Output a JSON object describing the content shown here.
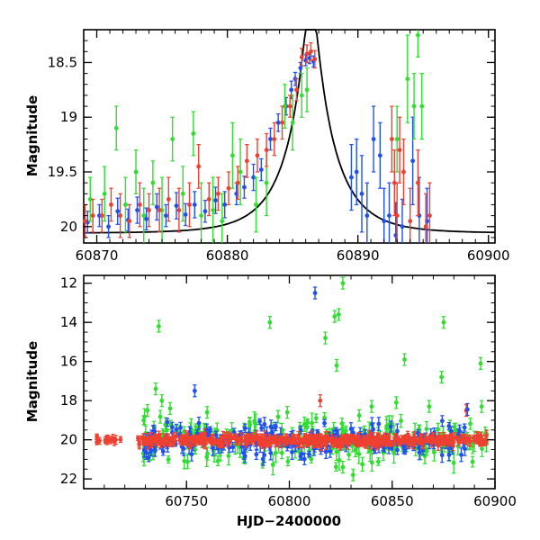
{
  "chart_data": [
    {
      "type": "scatter",
      "panel": "top",
      "xlabel": "",
      "ylabel": "Magnitude",
      "xlim": [
        60869,
        60900.5
      ],
      "ylim": [
        20.15,
        18.2
      ],
      "y_inverted": true,
      "xticks": [
        60870,
        60880,
        60890,
        60900
      ],
      "xtick_labels": [
        "60870",
        "60880",
        "60890",
        "60900"
      ],
      "yticks": [
        18.5,
        19,
        19.5,
        20
      ],
      "ytick_labels": [
        "18.5",
        "19",
        "19.5",
        "20"
      ],
      "grid": false,
      "legend": "none",
      "series": [
        {
          "color": "#2050ee",
          "x": [
            60869.3,
            60870.2,
            60870.9,
            60871.6,
            60872.4,
            60873.1,
            60873.8,
            60874.6,
            60875.3,
            60876.1,
            60876.8,
            60877.5,
            60878.3,
            60879.1,
            60879.8,
            60880.7,
            60881.3,
            60882.0,
            60882.6,
            60883.3,
            60883.9,
            60884.5,
            60884.9,
            60885.2,
            60885.6,
            60886.0,
            60886.3,
            60886.6,
            60889.5,
            60889.9,
            60890.3,
            60890.7,
            60891.2,
            60891.7,
            60892.0,
            60892.4,
            60892.9,
            60893.4,
            60894.2,
            60894.7,
            60895.3
          ],
          "y": [
            19.96,
            19.9,
            20.0,
            19.86,
            19.94,
            19.85,
            19.93,
            19.82,
            19.9,
            19.81,
            19.89,
            19.8,
            19.86,
            19.76,
            19.8,
            19.7,
            19.64,
            19.55,
            19.48,
            19.2,
            19.05,
            18.9,
            18.75,
            18.65,
            18.55,
            18.48,
            18.46,
            18.49,
            19.55,
            19.5,
            19.7,
            19.9,
            19.2,
            19.35,
            19.95,
            19.9,
            20.08,
            20.0,
            19.4,
            19.9,
            19.95
          ],
          "err": [
            0.1,
            0.1,
            0.1,
            0.12,
            0.1,
            0.12,
            0.1,
            0.12,
            0.1,
            0.12,
            0.1,
            0.12,
            0.1,
            0.12,
            0.12,
            0.1,
            0.1,
            0.12,
            0.1,
            0.1,
            0.08,
            0.08,
            0.08,
            0.06,
            0.05,
            0.05,
            0.05,
            0.05,
            0.3,
            0.3,
            0.35,
            0.3,
            0.3,
            0.3,
            0.3,
            0.3,
            0.3,
            0.25,
            0.4,
            0.35,
            0.3
          ]
        },
        {
          "color": "#30dd30",
          "x": [
            60869.5,
            60870.6,
            60871.5,
            60872.2,
            60873.0,
            60873.6,
            60874.3,
            60875.0,
            60875.8,
            60876.6,
            60877.4,
            60878.0,
            60878.9,
            60879.6,
            60880.4,
            60881.0,
            60882.2,
            60883.0,
            60884.4,
            60885.0,
            60885.7,
            60886.1,
            60893.0,
            60893.8,
            60894.3,
            60894.6,
            60894.9
          ],
          "y": [
            19.75,
            19.7,
            19.1,
            19.8,
            19.5,
            19.9,
            19.6,
            19.85,
            19.2,
            19.7,
            19.15,
            19.9,
            19.85,
            19.95,
            19.35,
            19.5,
            19.8,
            19.6,
            18.9,
            19.05,
            18.8,
            18.75,
            19.2,
            18.65,
            18.9,
            18.25,
            18.9
          ],
          "err": [
            0.2,
            0.25,
            0.2,
            0.25,
            0.2,
            0.25,
            0.2,
            0.3,
            0.2,
            0.25,
            0.2,
            0.3,
            0.3,
            0.25,
            0.3,
            0.3,
            0.25,
            0.3,
            0.2,
            0.25,
            0.2,
            0.2,
            0.3,
            0.4,
            0.3,
            0.2,
            0.3
          ]
        },
        {
          "color": "#ee4030",
          "x": [
            60869.1,
            60869.7,
            60870.4,
            60871.1,
            60871.8,
            60872.5,
            60873.3,
            60874.0,
            60874.8,
            60875.5,
            60876.3,
            60877.1,
            60877.8,
            60878.6,
            60879.3,
            60880.1,
            60880.8,
            60881.5,
            60882.3,
            60883.0,
            60883.6,
            60884.2,
            60884.8,
            60885.3,
            60885.7,
            60886.1,
            60886.4,
            60886.7,
            60892.6,
            60892.8,
            60893.0,
            60893.2,
            60893.5,
            60894.0,
            60894.6,
            60895.2,
            60895.5
          ],
          "y": [
            19.95,
            19.9,
            19.9,
            19.8,
            19.9,
            19.95,
            19.8,
            19.85,
            19.85,
            19.75,
            19.85,
            19.8,
            19.45,
            19.75,
            19.7,
            19.65,
            19.6,
            19.4,
            19.35,
            19.3,
            19.2,
            19.05,
            18.9,
            18.75,
            18.45,
            18.42,
            18.4,
            18.47,
            19.2,
            19.6,
            19.9,
            19.3,
            19.5,
            19.95,
            19.6,
            20.0,
            19.9
          ],
          "err": [
            0.15,
            0.15,
            0.15,
            0.15,
            0.2,
            0.15,
            0.2,
            0.15,
            0.2,
            0.2,
            0.2,
            0.2,
            0.2,
            0.15,
            0.15,
            0.15,
            0.15,
            0.15,
            0.15,
            0.15,
            0.15,
            0.15,
            0.1,
            0.1,
            0.08,
            0.08,
            0.08,
            0.08,
            0.3,
            0.3,
            0.3,
            0.3,
            0.3,
            0.3,
            0.3,
            0.3,
            0.3
          ]
        }
      ],
      "model_curve": {
        "color": "#000000",
        "t0": 60886.4,
        "u0": 0.14,
        "tE": 3.55,
        "baseline": 20.06
      }
    },
    {
      "type": "scatter",
      "panel": "bottom",
      "xlabel": "HJD−2400000",
      "ylabel": "Magnitude",
      "xlim": [
        60700,
        60900
      ],
      "ylim": [
        22.5,
        11.6
      ],
      "y_inverted": true,
      "xticks": [
        60750,
        60800,
        60850,
        60900
      ],
      "xtick_labels": [
        "60750",
        "60800",
        "60850",
        "60900"
      ],
      "yticks": [
        12,
        14,
        16,
        18,
        20,
        22
      ],
      "ytick_labels": [
        "12",
        "14",
        "16",
        "18",
        "20",
        "22"
      ],
      "grid": false,
      "legend": "none",
      "outliers": [
        {
          "x": 60736.5,
          "y": 14.2,
          "color": "#30dd30"
        },
        {
          "x": 60790.5,
          "y": 14.0,
          "color": "#30dd30"
        },
        {
          "x": 60812.5,
          "y": 12.5,
          "color": "#2050ee"
        },
        {
          "x": 60817.5,
          "y": 14.8,
          "color": "#30dd30"
        },
        {
          "x": 60822.0,
          "y": 13.7,
          "color": "#30dd30"
        },
        {
          "x": 60824.0,
          "y": 13.6,
          "color": "#30dd30"
        },
        {
          "x": 60826.0,
          "y": 12.0,
          "color": "#30dd30"
        },
        {
          "x": 60823.0,
          "y": 16.2,
          "color": "#30dd30"
        },
        {
          "x": 60856.0,
          "y": 15.9,
          "color": "#30dd30"
        },
        {
          "x": 60875.0,
          "y": 14.0,
          "color": "#30dd30"
        },
        {
          "x": 60874.0,
          "y": 16.8,
          "color": "#30dd30"
        },
        {
          "x": 60893.0,
          "y": 16.1,
          "color": "#30dd30"
        },
        {
          "x": 60754.0,
          "y": 17.5,
          "color": "#2050ee"
        },
        {
          "x": 60735.0,
          "y": 17.4,
          "color": "#30dd30"
        },
        {
          "x": 60731.0,
          "y": 18.5,
          "color": "#30dd30"
        },
        {
          "x": 60738.0,
          "y": 18.0,
          "color": "#30dd30"
        },
        {
          "x": 60742.0,
          "y": 18.4,
          "color": "#30dd30"
        },
        {
          "x": 60760.0,
          "y": 18.6,
          "color": "#30dd30"
        },
        {
          "x": 60799.0,
          "y": 18.6,
          "color": "#30dd30"
        },
        {
          "x": 60815.0,
          "y": 18.0,
          "color": "#ee4030"
        },
        {
          "x": 60826.0,
          "y": 21.4,
          "color": "#30dd30"
        },
        {
          "x": 60831.0,
          "y": 21.8,
          "color": "#30dd30"
        },
        {
          "x": 60840.0,
          "y": 18.3,
          "color": "#30dd30"
        },
        {
          "x": 60852.0,
          "y": 18.1,
          "color": "#30dd30"
        },
        {
          "x": 60868.0,
          "y": 18.3,
          "color": "#30dd30"
        },
        {
          "x": 60886.0,
          "y": 18.5,
          "color": "#ee4030"
        },
        {
          "x": 60886.6,
          "y": 18.45,
          "color": "#2050ee"
        },
        {
          "x": 60893.5,
          "y": 18.3,
          "color": "#30dd30"
        }
      ],
      "bands": [
        {
          "color": "#30dd30",
          "x_start": 60728,
          "x_end": 60896,
          "center": 20.0,
          "spread": 0.55,
          "n": 220,
          "err": 0.35,
          "seed": 7
        },
        {
          "color": "#2050ee",
          "x_start": 60728,
          "x_end": 60886,
          "center": 20.05,
          "spread": 0.4,
          "n": 240,
          "err": 0.25,
          "seed": 19
        },
        {
          "color": "#ee4030",
          "x_start": 60706,
          "x_end": 60722,
          "center": 20.0,
          "spread": 0.08,
          "n": 14,
          "err": 0.15,
          "seed": 3
        },
        {
          "color": "#ee4030",
          "x_start": 60726,
          "x_end": 60896,
          "center": 20.02,
          "spread": 0.12,
          "n": 420,
          "err": 0.18,
          "seed": 29
        }
      ]
    }
  ]
}
